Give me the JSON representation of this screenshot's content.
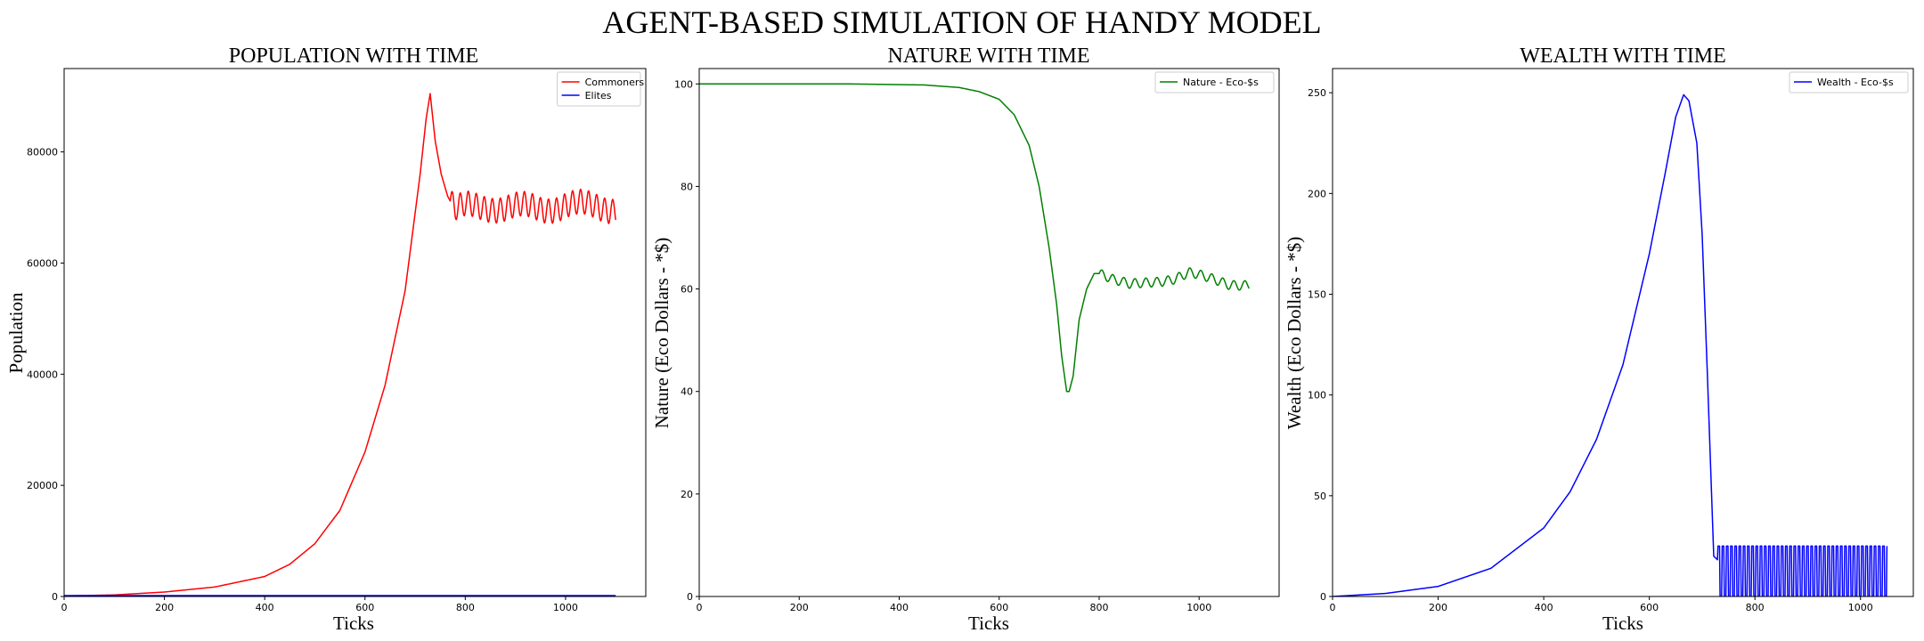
{
  "figure": {
    "suptitle": "AGENT-BASED SIMULATION OF HANDY MODEL"
  },
  "chart_data": [
    {
      "type": "line",
      "title": "POPULATION WITH TIME",
      "xlabel": "Ticks",
      "ylabel": "Population",
      "xlim": [
        0,
        1160
      ],
      "ylim": [
        0,
        95000
      ],
      "xticks": [
        0,
        200,
        400,
        600,
        800,
        1000
      ],
      "yticks": [
        0,
        20000,
        40000,
        60000,
        80000
      ],
      "legend_position": "top-right",
      "series": [
        {
          "name": "Commoners",
          "color": "#ff0000",
          "oscillation": {
            "from_tick": 770,
            "period": 16,
            "amplitude": 2200
          },
          "points": [
            [
              0,
              100
            ],
            [
              100,
              280
            ],
            [
              200,
              800
            ],
            [
              300,
              1700
            ],
            [
              400,
              3600
            ],
            [
              450,
              5800
            ],
            [
              500,
              9500
            ],
            [
              550,
              15500
            ],
            [
              600,
              26000
            ],
            [
              640,
              38000
            ],
            [
              680,
              55000
            ],
            [
              710,
              76000
            ],
            [
              722,
              86000
            ],
            [
              730,
              90500
            ],
            [
              740,
              82000
            ],
            [
              752,
              76000
            ],
            [
              765,
              72000
            ],
            [
              780,
              69500
            ],
            [
              800,
              70000
            ],
            [
              850,
              70200
            ],
            [
              900,
              70000
            ],
            [
              950,
              69800
            ],
            [
              1000,
              70500
            ],
            [
              1050,
              70200
            ],
            [
              1100,
              70000
            ]
          ]
        },
        {
          "name": "Elites",
          "color": "#0000ff",
          "points": [
            [
              0,
              150
            ],
            [
              1100,
              150
            ]
          ]
        }
      ]
    },
    {
      "type": "line",
      "title": "NATURE WITH TIME",
      "xlabel": "Ticks",
      "ylabel": "Nature (Eco Dollars - *$)",
      "xlim": [
        0,
        1160
      ],
      "ylim": [
        0,
        103
      ],
      "xticks": [
        0,
        200,
        400,
        600,
        800,
        1000
      ],
      "yticks": [
        0,
        20,
        40,
        60,
        80,
        100
      ],
      "legend_position": "top-right",
      "series": [
        {
          "name": "Nature - Eco-$s",
          "color": "#008000",
          "oscillation": {
            "from_tick": 800,
            "period": 22,
            "amplitude": 0.9
          },
          "points": [
            [
              0,
              100
            ],
            [
              300,
              100
            ],
            [
              450,
              99.8
            ],
            [
              520,
              99.3
            ],
            [
              560,
              98.5
            ],
            [
              600,
              97
            ],
            [
              630,
              94
            ],
            [
              660,
              88
            ],
            [
              680,
              80
            ],
            [
              700,
              68
            ],
            [
              715,
              57
            ],
            [
              725,
              47
            ],
            [
              735,
              40
            ],
            [
              740,
              40
            ],
            [
              748,
              43
            ],
            [
              760,
              54
            ],
            [
              775,
              60
            ],
            [
              790,
              63
            ],
            [
              800,
              63
            ],
            [
              830,
              61.5
            ],
            [
              860,
              60.8
            ],
            [
              900,
              61.5
            ],
            [
              950,
              62
            ],
            [
              980,
              63
            ],
            [
              1020,
              62
            ],
            [
              1060,
              61
            ],
            [
              1100,
              61
            ]
          ]
        }
      ]
    },
    {
      "type": "line",
      "title": "WEALTH WITH TIME",
      "xlabel": "Ticks",
      "ylabel": "Wealth (Eco Dollars - *$)",
      "xlim": [
        0,
        1100
      ],
      "ylim": [
        0,
        262
      ],
      "xticks": [
        0,
        200,
        400,
        600,
        800,
        1000
      ],
      "yticks": [
        0,
        50,
        100,
        150,
        200,
        250
      ],
      "legend_position": "top-right",
      "series": [
        {
          "name": "Wealth - Eco-$s",
          "color": "#0000ff",
          "oscillation": {
            "from_tick": 730,
            "to_tick": 1050,
            "period": 8,
            "low": 0,
            "high": 25
          },
          "points": [
            [
              0,
              0
            ],
            [
              100,
              1.5
            ],
            [
              200,
              5
            ],
            [
              300,
              14
            ],
            [
              400,
              34
            ],
            [
              450,
              52
            ],
            [
              500,
              78
            ],
            [
              550,
              115
            ],
            [
              600,
              170
            ],
            [
              630,
              210
            ],
            [
              650,
              238
            ],
            [
              665,
              249
            ],
            [
              675,
              246
            ],
            [
              690,
              225
            ],
            [
              700,
              180
            ],
            [
              710,
              110
            ],
            [
              718,
              50
            ],
            [
              722,
              20
            ],
            [
              730,
              18
            ]
          ]
        }
      ]
    }
  ]
}
